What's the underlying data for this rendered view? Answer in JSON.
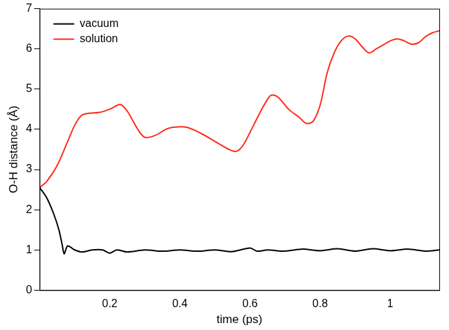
{
  "chart_data": {
    "type": "line",
    "x_label": "time (ps)",
    "y_label": "O-H distance (Å)",
    "xlim": [
      0,
      1.14
    ],
    "xticks": [
      0.2,
      0.4,
      0.6,
      0.8,
      1
    ],
    "ylim": [
      0,
      7
    ],
    "yticks": [
      0,
      1,
      2,
      3,
      4,
      5,
      6,
      7
    ],
    "grid": false,
    "legend": "upper left",
    "series": [
      {
        "name": "vacuum",
        "color": "#000000",
        "x": [
          0,
          0.02,
          0.04,
          0.055,
          0.065,
          0.07,
          0.08,
          0.1,
          0.12,
          0.15,
          0.18,
          0.2,
          0.22,
          0.25,
          0.3,
          0.35,
          0.4,
          0.45,
          0.5,
          0.55,
          0.6,
          0.62,
          0.65,
          0.7,
          0.75,
          0.8,
          0.85,
          0.9,
          0.95,
          1.0,
          1.05,
          1.1,
          1.14
        ],
        "values": [
          2.55,
          2.3,
          1.9,
          1.5,
          1.1,
          0.9,
          1.1,
          1.0,
          0.95,
          1.0,
          1.0,
          0.92,
          1.0,
          0.95,
          1.0,
          0.97,
          1.0,
          0.97,
          1.0,
          0.96,
          1.05,
          0.97,
          1.0,
          0.97,
          1.02,
          0.98,
          1.03,
          0.97,
          1.03,
          0.98,
          1.02,
          0.97,
          1.0
        ]
      },
      {
        "name": "solution",
        "color": "#ff2a1a",
        "x": [
          0,
          0.02,
          0.05,
          0.08,
          0.1,
          0.12,
          0.14,
          0.17,
          0.2,
          0.23,
          0.25,
          0.28,
          0.3,
          0.33,
          0.36,
          0.38,
          0.42,
          0.46,
          0.5,
          0.54,
          0.56,
          0.58,
          0.61,
          0.64,
          0.66,
          0.68,
          0.71,
          0.74,
          0.76,
          0.78,
          0.8,
          0.82,
          0.84,
          0.86,
          0.88,
          0.9,
          0.92,
          0.94,
          0.96,
          0.98,
          1.0,
          1.02,
          1.04,
          1.06,
          1.08,
          1.1,
          1.12,
          1.14
        ],
        "values": [
          2.55,
          2.7,
          3.1,
          3.7,
          4.1,
          4.35,
          4.4,
          4.42,
          4.5,
          4.62,
          4.45,
          4.0,
          3.8,
          3.85,
          4.0,
          4.05,
          4.05,
          3.9,
          3.7,
          3.5,
          3.45,
          3.6,
          4.1,
          4.6,
          4.85,
          4.8,
          4.5,
          4.3,
          4.15,
          4.2,
          4.6,
          5.4,
          5.9,
          6.2,
          6.32,
          6.25,
          6.05,
          5.9,
          6.0,
          6.1,
          6.2,
          6.25,
          6.2,
          6.12,
          6.15,
          6.3,
          6.4,
          6.45
        ]
      }
    ]
  }
}
